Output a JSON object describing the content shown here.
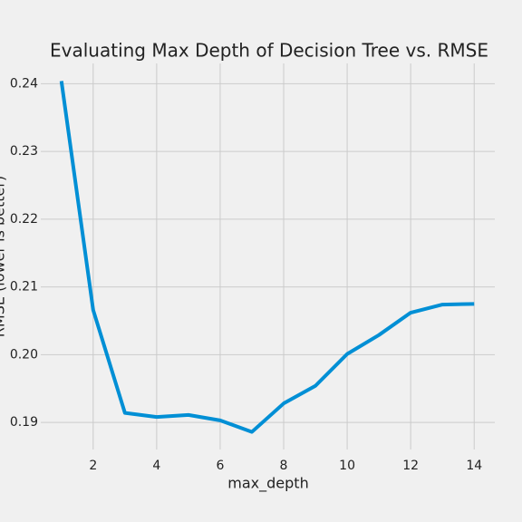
{
  "chart_data": {
    "type": "line",
    "title": "Evaluating Max Depth of Decision Tree vs. RMSE",
    "x_label": "max_depth",
    "y_label": "RMSE (lower is better)",
    "x": [
      1,
      2,
      3,
      4,
      5,
      6,
      7,
      8,
      9,
      10,
      11,
      12,
      13,
      14
    ],
    "series": [
      {
        "color": "#008fd5",
        "values": [
          0.2404,
          0.2066,
          0.1914,
          0.1908,
          0.1911,
          0.1903,
          0.1886,
          0.1928,
          0.1954,
          0.2001,
          0.2029,
          0.2062,
          0.2074,
          0.2075
        ]
      }
    ],
    "xlim": [
      0.35,
      14.65
    ],
    "xticks": [
      2,
      4,
      6,
      8,
      10,
      12,
      14
    ],
    "ylim": [
      0.186,
      0.243
    ],
    "yticks": [
      0.19,
      {
        "value": 0.2,
        "label": "0.20"
      },
      0.21,
      0.22,
      0.23,
      0.24
    ],
    "grid": true
  }
}
